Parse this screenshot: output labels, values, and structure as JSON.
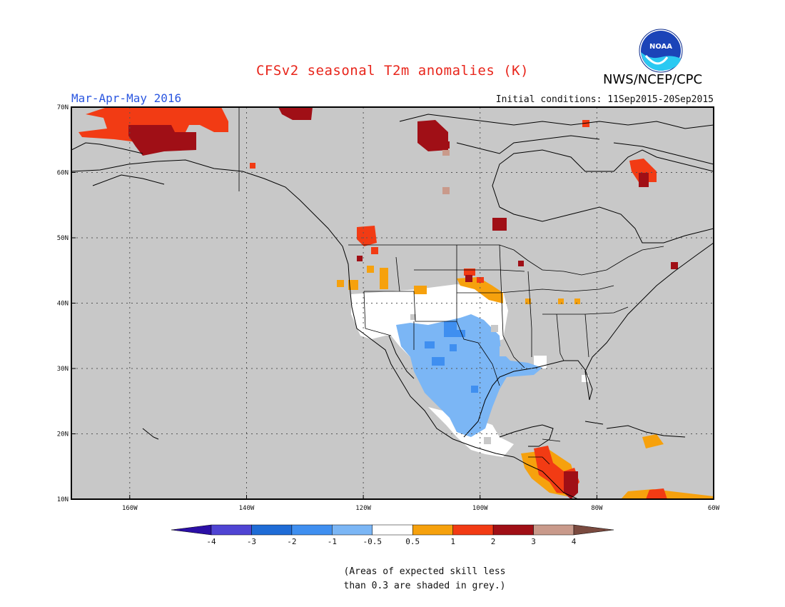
{
  "title": "CFSv2 seasonal T2m anomalies (K)",
  "season": "Mar-Apr-May 2016",
  "initial_conditions": "Initial conditions: 11Sep2015-20Sep2015",
  "agency": "NWS/NCEP/CPC",
  "logo": {
    "text": "NOAA",
    "icon": "noaa-logo-icon"
  },
  "map": {
    "lon_range": [
      -170,
      -60
    ],
    "lat_range": [
      10,
      70
    ],
    "lat_labels": [
      "10N",
      "20N",
      "30N",
      "40N",
      "50N",
      "60N",
      "70N"
    ],
    "lon_labels": [
      "160W",
      "140W",
      "120W",
      "100W",
      "80W",
      "60W"
    ],
    "background_color": "#c8c8c8"
  },
  "colorbar": {
    "labels": [
      "-4",
      "-3",
      "-2",
      "-1",
      "-0.5",
      "0.5",
      "1",
      "2",
      "3",
      "4"
    ],
    "colors": [
      "#2b0fa6",
      "#4f44d3",
      "#1f6cd6",
      "#3f8ff0",
      "#7bb6f5",
      "#ffffff",
      "#f6a10d",
      "#f23b14",
      "#a00f16",
      "#c99a8b",
      "#7a4a3f"
    ]
  },
  "note_line1": "(Areas of expected skill less",
  "note_line2": "than 0.3 are shaded in grey.)"
}
